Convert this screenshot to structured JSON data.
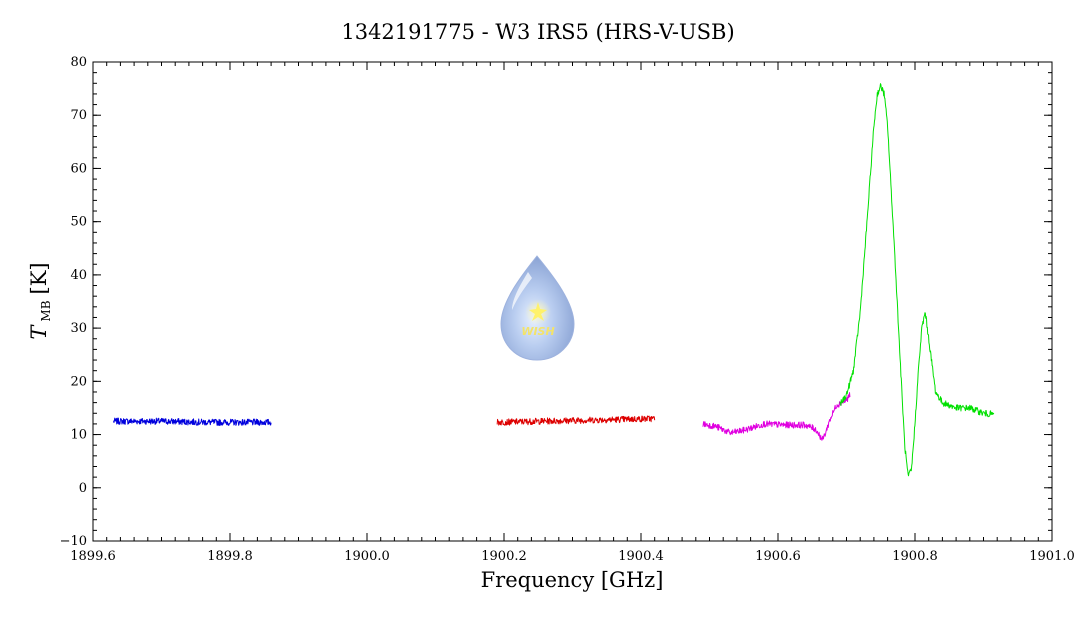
{
  "chart_data": {
    "type": "line",
    "title": "1342191775 - W3 IRS5 (HRS-V-USB)",
    "xlabel": "Frequency [GHz]",
    "ylabel_main": "T",
    "ylabel_sub": "MB",
    "ylabel_unit": "[K]",
    "xlim": [
      1899.6,
      1901.0
    ],
    "ylim": [
      -10,
      80
    ],
    "xticks": [
      "1899.6",
      "1899.8",
      "1900.0",
      "1900.2",
      "1900.4",
      "1900.6",
      "1900.8",
      "1901.0"
    ],
    "yticks": [
      "−10",
      "0",
      "10",
      "20",
      "30",
      "40",
      "50",
      "60",
      "70",
      "80"
    ],
    "grid": false,
    "logo_text": "WISH",
    "series": [
      {
        "color": "#0000dd",
        "x": [
          1899.63,
          1899.7,
          1899.77,
          1899.86
        ],
        "y": [
          12.5,
          12.5,
          12.3,
          12.3
        ],
        "noise": 0.6
      },
      {
        "color": "#dd0000",
        "x": [
          1900.19,
          1900.25,
          1900.32,
          1900.42
        ],
        "y": [
          12.3,
          12.5,
          12.7,
          13.0
        ],
        "noise": 0.6
      },
      {
        "color": "#e000e0",
        "x": [
          1900.49,
          1900.51,
          1900.53,
          1900.55,
          1900.58,
          1900.61,
          1900.64,
          1900.655,
          1900.665,
          1900.67,
          1900.675,
          1900.685,
          1900.7,
          1900.705
        ],
        "y": [
          12.0,
          11.5,
          10.3,
          10.8,
          12.0,
          11.8,
          11.8,
          11.0,
          9.0,
          10.5,
          12.5,
          15.5,
          16.5,
          17.5
        ],
        "noise": 0.6
      },
      {
        "color": "#00e000",
        "x": [
          1900.69,
          1900.7,
          1900.71,
          1900.72,
          1900.73,
          1900.74,
          1900.745,
          1900.75,
          1900.755,
          1900.76,
          1900.77,
          1900.78,
          1900.785,
          1900.79,
          1900.795,
          1900.8,
          1900.805,
          1900.81,
          1900.815,
          1900.82,
          1900.83,
          1900.84,
          1900.86,
          1900.88,
          1900.9,
          1900.915
        ],
        "y": [
          15.5,
          17.5,
          22.0,
          33.0,
          50.0,
          68.0,
          74.0,
          75.5,
          74.0,
          68.0,
          45.0,
          20.0,
          8.0,
          2.0,
          3.5,
          12.0,
          22.0,
          30.0,
          33.0,
          28.0,
          18.0,
          16.0,
          15.0,
          15.0,
          14.0,
          13.8
        ],
        "noise": 0.6
      }
    ]
  }
}
